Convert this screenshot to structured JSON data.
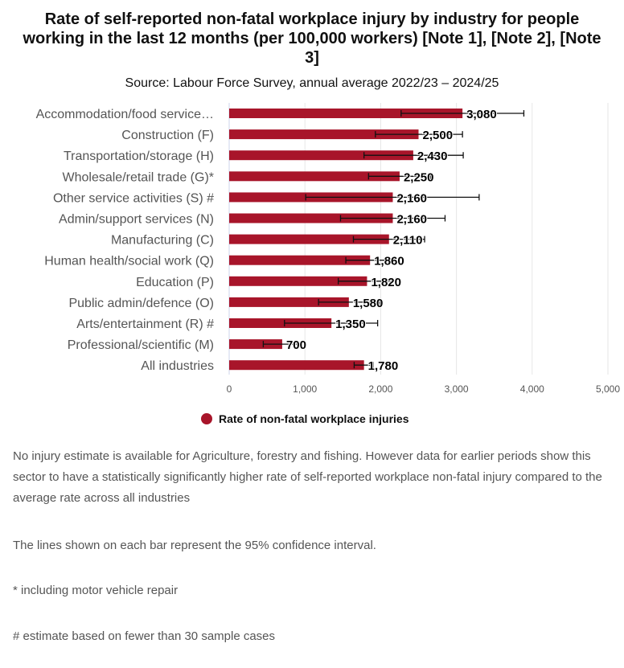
{
  "chart_data": {
    "type": "bar",
    "orientation": "horizontal",
    "title": "Rate of self-reported non-fatal workplace injury by industry for people working in the last 12 months (per 100,000 workers) [Note 1], [Note 2], [Note 3]",
    "subtitle": "Source: Labour Force Survey, annual average 2022/23 – 2024/25",
    "categories": [
      "Accommodation/food service…",
      "Construction (F)",
      "Transportation/storage (H)",
      "Wholesale/retail trade (G)*",
      "Other service activities (S) #",
      "Admin/support services (N)",
      "Manufacturing (C)",
      "Human health/social work (Q)",
      "Education (P)",
      "Public admin/defence (O)",
      "Arts/entertainment (R) #",
      "Professional/scientific (M)",
      "All industries"
    ],
    "series": [
      {
        "name": "Rate of non-fatal workplace injuries",
        "color": "#a8152a",
        "values": [
          3080,
          2500,
          2430,
          2250,
          2160,
          2160,
          2110,
          1860,
          1820,
          1580,
          1350,
          700,
          1780
        ],
        "data_labels": [
          "3,080",
          "2,500",
          "2,430",
          "2,250",
          "2,160",
          "2,160",
          "2,110",
          "1,860",
          "1,820",
          "1,580",
          "1,350",
          "700",
          "1,780"
        ],
        "ci_lower": [
          2270,
          1930,
          1780,
          1840,
          1010,
          1470,
          1640,
          1540,
          1440,
          1180,
          730,
          450,
          1650
        ],
        "ci_upper": [
          3890,
          3080,
          3090,
          2660,
          3300,
          2850,
          2580,
          2190,
          2200,
          1990,
          1960,
          950,
          1900
        ]
      }
    ],
    "xlim": [
      0,
      5000
    ],
    "x_ticks": [
      "0",
      "1,000",
      "2,000",
      "3,000",
      "4,000",
      "5,000"
    ],
    "grid": true,
    "legend": "bottom"
  },
  "notes": [
    "No injury estimate is available for Agriculture, forestry and fishing. However data for earlier periods show this sector to have a statistically significantly higher rate of self-reported workplace non-fatal injury compared to the average rate across all industries",
    "The lines shown on each bar represent the 95% confidence interval.",
    "* including motor vehicle repair",
    "# estimate based on fewer than 30 sample cases"
  ]
}
